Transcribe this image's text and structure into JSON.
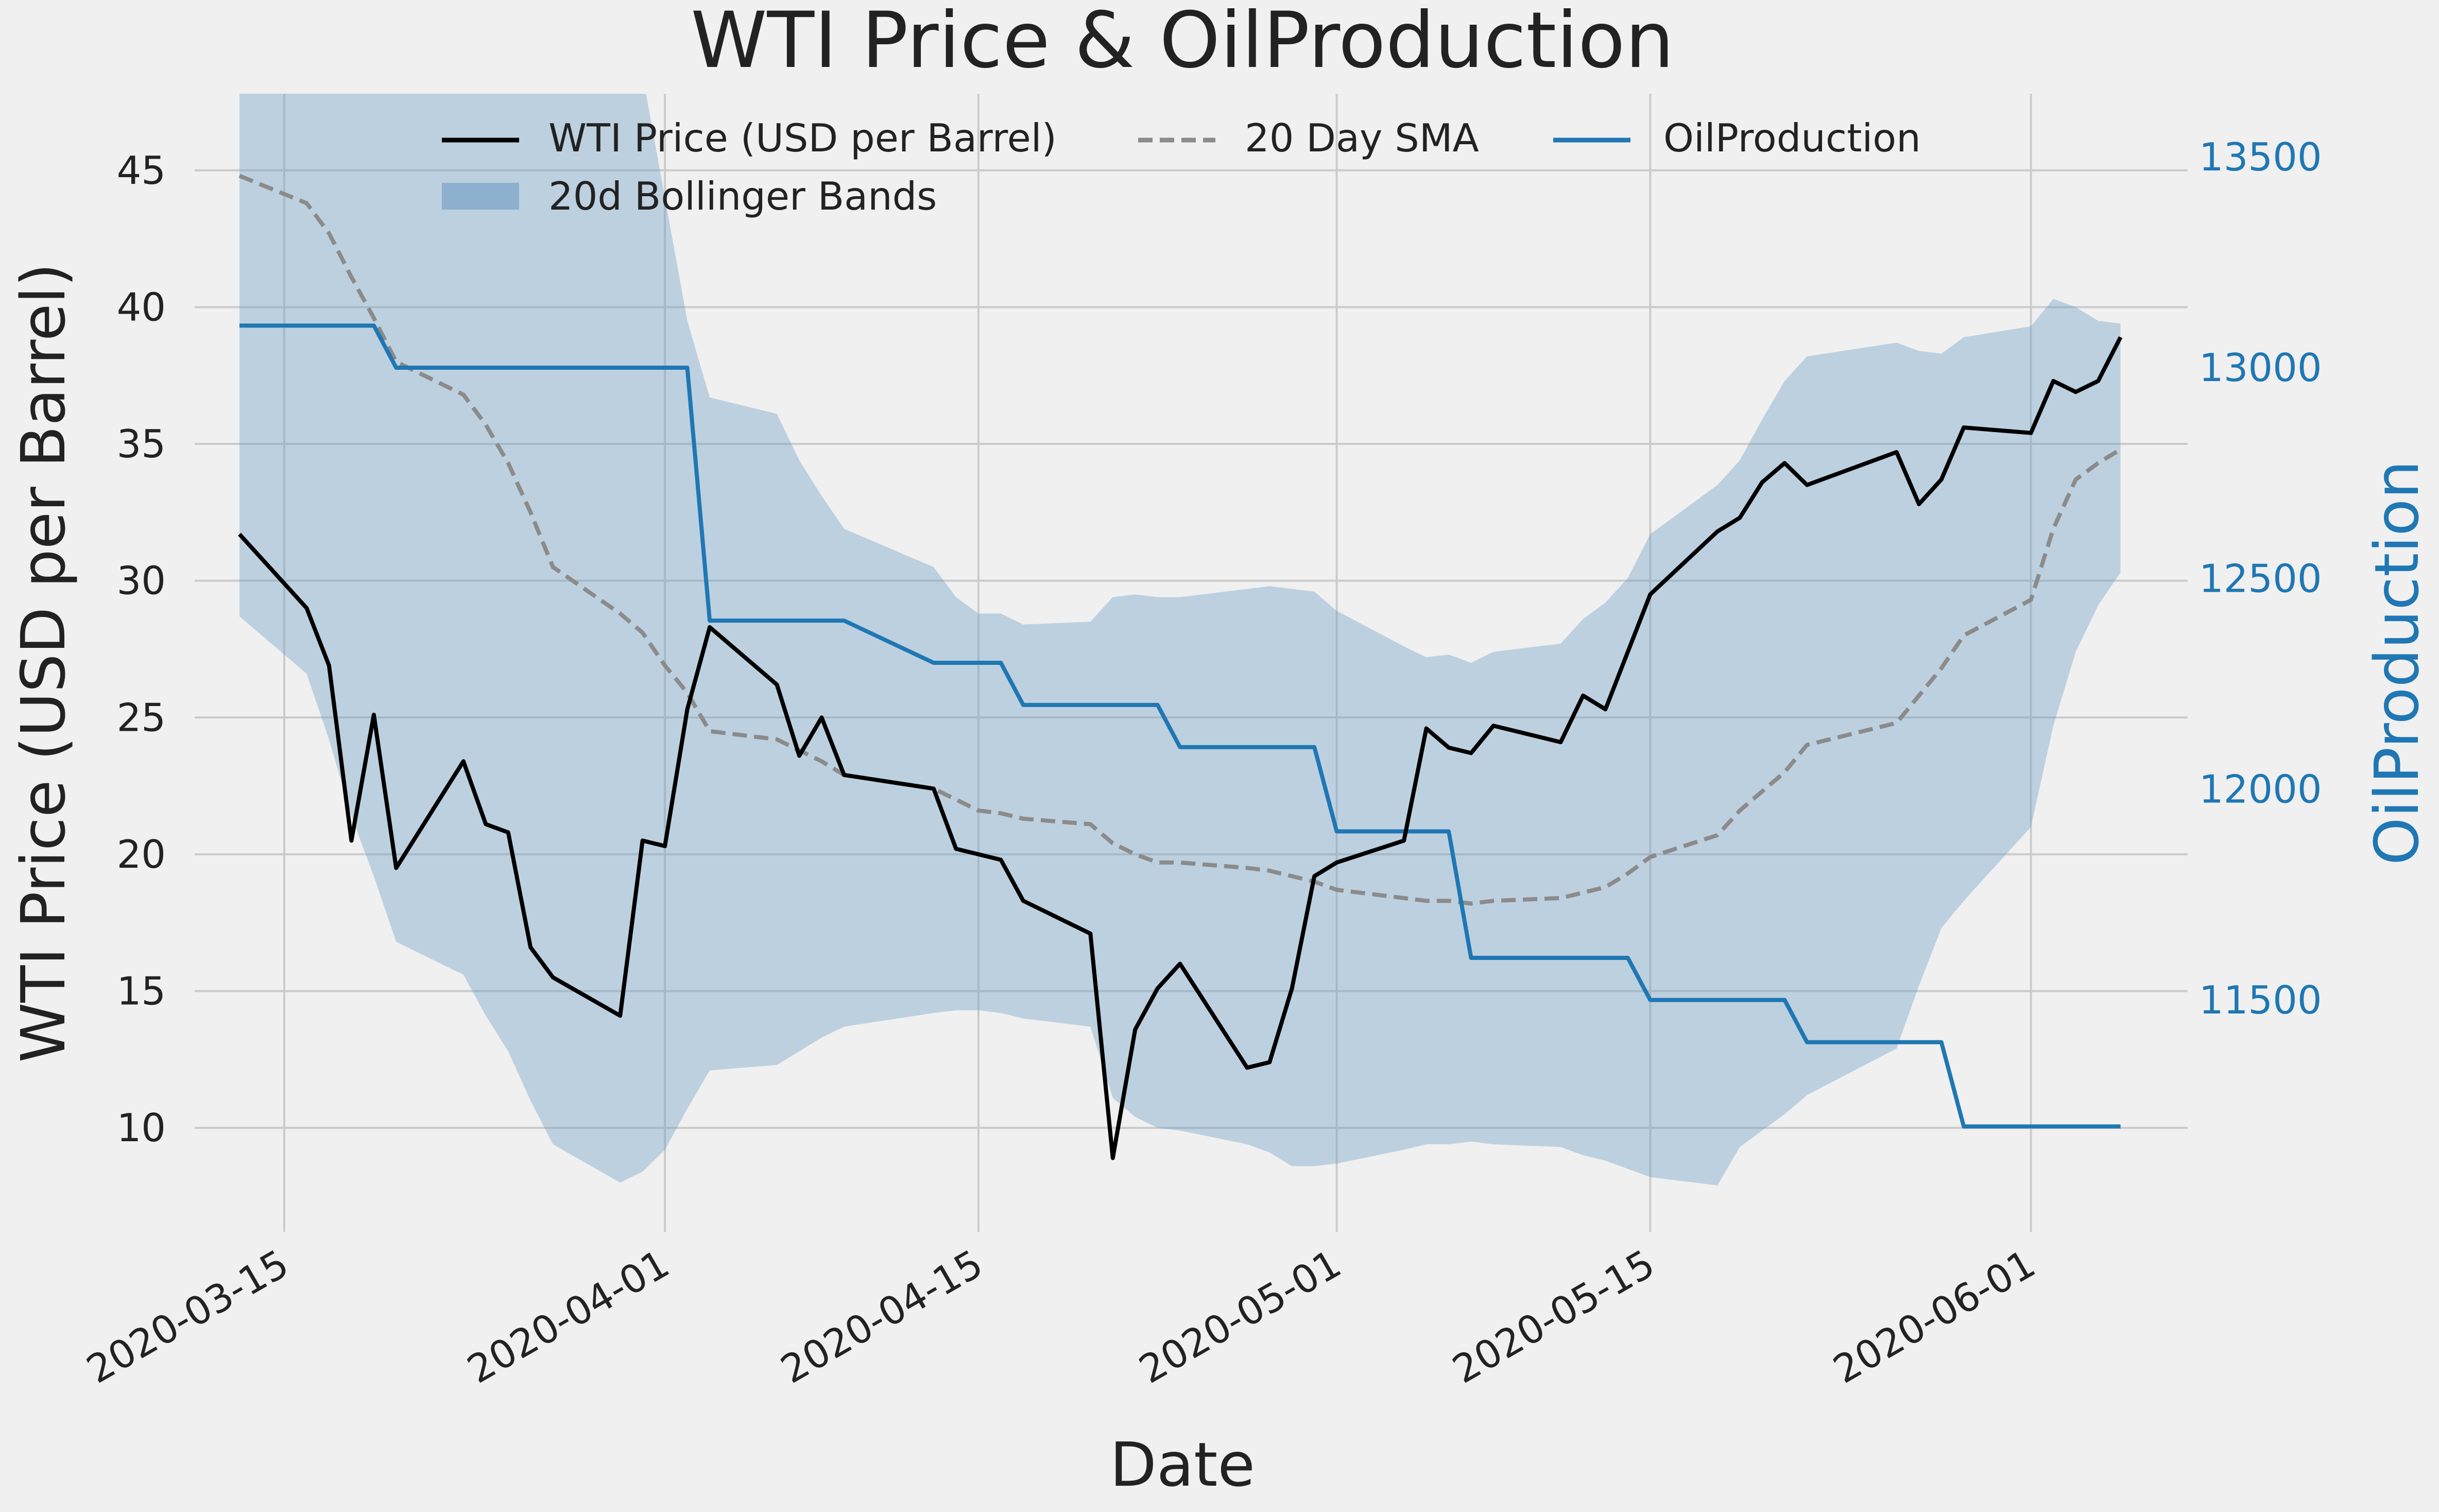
{
  "chart_data": {
    "type": "line",
    "title": "WTI Price & OilProduction",
    "xlabel": "Date",
    "ylabel": "WTI Price (USD per Barrel)",
    "y2label": "OilProduction",
    "ylim": [
      6.2,
      47.8
    ],
    "y2lim": [
      10950,
      13650
    ],
    "xlim": [
      "2020-03-11",
      "2020-06-08"
    ],
    "grid": true,
    "legend_position": "top-center",
    "x_ticks": [
      "2020-03-15",
      "2020-04-01",
      "2020-04-15",
      "2020-05-01",
      "2020-05-15",
      "2020-06-01"
    ],
    "y_ticks": [
      10,
      15,
      20,
      25,
      30,
      35,
      40,
      45
    ],
    "y2_ticks": [
      11500,
      12000,
      12500,
      13000,
      13500
    ],
    "colors": {
      "background": "#f0f0f0",
      "grid": "#cbcbcb",
      "price": "#000000",
      "sma": "#8b8b8b",
      "production": "#1f77b4",
      "band": "#6a9bc3"
    },
    "legend": {
      "price": "WTI Price (USD per Barrel)",
      "sma": "20 Day SMA",
      "production": "OilProduction",
      "bands": "20d Bollinger Bands"
    },
    "price": [
      [
        "2020-03-13",
        31.7
      ],
      [
        "2020-03-16",
        29.0
      ],
      [
        "2020-03-17",
        26.9
      ],
      [
        "2020-03-18",
        20.5
      ],
      [
        "2020-03-19",
        25.1
      ],
      [
        "2020-03-20",
        19.5
      ],
      [
        "2020-03-23",
        23.4
      ],
      [
        "2020-03-24",
        21.1
      ],
      [
        "2020-03-25",
        20.8
      ],
      [
        "2020-03-26",
        16.6
      ],
      [
        "2020-03-27",
        15.5
      ],
      [
        "2020-03-30",
        14.1
      ],
      [
        "2020-03-31",
        20.5
      ],
      [
        "2020-04-01",
        20.3
      ],
      [
        "2020-04-02",
        25.3
      ],
      [
        "2020-04-03",
        28.3
      ],
      [
        "2020-04-06",
        26.2
      ],
      [
        "2020-04-07",
        23.6
      ],
      [
        "2020-04-08",
        25.0
      ],
      [
        "2020-04-09",
        22.9
      ],
      [
        "2020-04-13",
        22.4
      ],
      [
        "2020-04-14",
        20.2
      ],
      [
        "2020-04-15",
        20.0
      ],
      [
        "2020-04-16",
        19.8
      ],
      [
        "2020-04-17",
        18.3
      ],
      [
        "2020-04-20",
        17.1
      ],
      [
        "2020-04-21",
        8.9
      ],
      [
        "2020-04-22",
        13.6
      ],
      [
        "2020-04-23",
        15.1
      ],
      [
        "2020-04-24",
        16.0
      ],
      [
        "2020-04-27",
        12.2
      ],
      [
        "2020-04-28",
        12.4
      ],
      [
        "2020-04-29",
        15.1
      ],
      [
        "2020-04-30",
        19.2
      ],
      [
        "2020-05-01",
        19.7
      ],
      [
        "2020-05-04",
        20.5
      ],
      [
        "2020-05-05",
        24.6
      ],
      [
        "2020-05-06",
        23.9
      ],
      [
        "2020-05-07",
        23.7
      ],
      [
        "2020-05-08",
        24.7
      ],
      [
        "2020-05-11",
        24.1
      ],
      [
        "2020-05-12",
        25.8
      ],
      [
        "2020-05-13",
        25.3
      ],
      [
        "2020-05-14",
        27.4
      ],
      [
        "2020-05-15",
        29.5
      ],
      [
        "2020-05-18",
        31.8
      ],
      [
        "2020-05-19",
        32.3
      ],
      [
        "2020-05-20",
        33.6
      ],
      [
        "2020-05-21",
        34.3
      ],
      [
        "2020-05-22",
        33.5
      ],
      [
        "2020-05-26",
        34.7
      ],
      [
        "2020-05-27",
        32.8
      ],
      [
        "2020-05-28",
        33.7
      ],
      [
        "2020-05-29",
        35.6
      ],
      [
        "2020-06-01",
        35.4
      ],
      [
        "2020-06-02",
        37.3
      ],
      [
        "2020-06-03",
        36.9
      ],
      [
        "2020-06-04",
        37.3
      ],
      [
        "2020-06-05",
        38.9
      ]
    ],
    "sma": [
      [
        "2020-03-13",
        44.8
      ],
      [
        "2020-03-16",
        43.8
      ],
      [
        "2020-03-17",
        42.7
      ],
      [
        "2020-03-18",
        41.1
      ],
      [
        "2020-03-19",
        39.6
      ],
      [
        "2020-03-20",
        38.0
      ],
      [
        "2020-03-23",
        36.8
      ],
      [
        "2020-03-24",
        35.7
      ],
      [
        "2020-03-25",
        34.3
      ],
      [
        "2020-03-26",
        32.5
      ],
      [
        "2020-03-27",
        30.5
      ],
      [
        "2020-03-30",
        28.8
      ],
      [
        "2020-03-31",
        28.1
      ],
      [
        "2020-04-01",
        26.9
      ],
      [
        "2020-04-02",
        25.9
      ],
      [
        "2020-04-03",
        24.5
      ],
      [
        "2020-04-06",
        24.2
      ],
      [
        "2020-04-07",
        23.8
      ],
      [
        "2020-04-08",
        23.4
      ],
      [
        "2020-04-09",
        22.9
      ],
      [
        "2020-04-13",
        22.4
      ],
      [
        "2020-04-14",
        22.0
      ],
      [
        "2020-04-15",
        21.6
      ],
      [
        "2020-04-16",
        21.5
      ],
      [
        "2020-04-17",
        21.3
      ],
      [
        "2020-04-20",
        21.1
      ],
      [
        "2020-04-21",
        20.4
      ],
      [
        "2020-04-22",
        20.0
      ],
      [
        "2020-04-23",
        19.7
      ],
      [
        "2020-04-24",
        19.7
      ],
      [
        "2020-04-27",
        19.5
      ],
      [
        "2020-04-28",
        19.4
      ],
      [
        "2020-04-29",
        19.2
      ],
      [
        "2020-04-30",
        19.0
      ],
      [
        "2020-05-01",
        18.7
      ],
      [
        "2020-05-04",
        18.4
      ],
      [
        "2020-05-05",
        18.3
      ],
      [
        "2020-05-06",
        18.3
      ],
      [
        "2020-05-07",
        18.2
      ],
      [
        "2020-05-08",
        18.3
      ],
      [
        "2020-05-11",
        18.4
      ],
      [
        "2020-05-12",
        18.6
      ],
      [
        "2020-05-13",
        18.8
      ],
      [
        "2020-05-14",
        19.3
      ],
      [
        "2020-05-15",
        19.9
      ],
      [
        "2020-05-18",
        20.7
      ],
      [
        "2020-05-19",
        21.6
      ],
      [
        "2020-05-20",
        22.3
      ],
      [
        "2020-05-21",
        23.0
      ],
      [
        "2020-05-22",
        24.0
      ],
      [
        "2020-05-26",
        24.8
      ],
      [
        "2020-05-27",
        25.8
      ],
      [
        "2020-05-28",
        26.8
      ],
      [
        "2020-05-29",
        28.0
      ],
      [
        "2020-06-01",
        29.3
      ],
      [
        "2020-06-02",
        31.9
      ],
      [
        "2020-06-03",
        33.7
      ],
      [
        "2020-06-04",
        34.3
      ],
      [
        "2020-06-05",
        34.8
      ]
    ],
    "band_upper": [
      [
        "2020-03-13",
        60.0
      ],
      [
        "2020-03-20",
        60.0
      ],
      [
        "2020-03-30",
        60.0
      ],
      [
        "2020-03-31",
        48.5
      ],
      [
        "2020-04-01",
        44.0
      ],
      [
        "2020-04-02",
        39.5
      ],
      [
        "2020-04-03",
        36.7
      ],
      [
        "2020-04-06",
        36.1
      ],
      [
        "2020-04-07",
        34.4
      ],
      [
        "2020-04-08",
        33.1
      ],
      [
        "2020-04-09",
        31.9
      ],
      [
        "2020-04-13",
        30.5
      ],
      [
        "2020-04-14",
        29.4
      ],
      [
        "2020-04-15",
        28.8
      ],
      [
        "2020-04-16",
        28.8
      ],
      [
        "2020-04-17",
        28.4
      ],
      [
        "2020-04-20",
        28.5
      ],
      [
        "2020-04-21",
        29.4
      ],
      [
        "2020-04-22",
        29.5
      ],
      [
        "2020-04-23",
        29.4
      ],
      [
        "2020-04-24",
        29.4
      ],
      [
        "2020-04-27",
        29.7
      ],
      [
        "2020-04-28",
        29.8
      ],
      [
        "2020-04-30",
        29.6
      ],
      [
        "2020-05-01",
        28.9
      ],
      [
        "2020-05-04",
        27.6
      ],
      [
        "2020-05-05",
        27.2
      ],
      [
        "2020-05-06",
        27.3
      ],
      [
        "2020-05-07",
        27.0
      ],
      [
        "2020-05-08",
        27.4
      ],
      [
        "2020-05-11",
        27.7
      ],
      [
        "2020-05-12",
        28.6
      ],
      [
        "2020-05-13",
        29.2
      ],
      [
        "2020-05-14",
        30.1
      ],
      [
        "2020-05-15",
        31.7
      ],
      [
        "2020-05-18",
        33.5
      ],
      [
        "2020-05-19",
        34.4
      ],
      [
        "2020-05-20",
        35.9
      ],
      [
        "2020-05-21",
        37.3
      ],
      [
        "2020-05-22",
        38.2
      ],
      [
        "2020-05-26",
        38.7
      ],
      [
        "2020-05-27",
        38.4
      ],
      [
        "2020-05-28",
        38.3
      ],
      [
        "2020-05-29",
        38.9
      ],
      [
        "2020-06-01",
        39.3
      ],
      [
        "2020-06-02",
        40.3
      ],
      [
        "2020-06-03",
        40.0
      ],
      [
        "2020-06-04",
        39.5
      ],
      [
        "2020-06-05",
        39.4
      ]
    ],
    "band_lower": [
      [
        "2020-03-13",
        28.7
      ],
      [
        "2020-03-16",
        26.6
      ],
      [
        "2020-03-17",
        24.2
      ],
      [
        "2020-03-18",
        21.4
      ],
      [
        "2020-03-19",
        19.2
      ],
      [
        "2020-03-20",
        16.8
      ],
      [
        "2020-03-23",
        15.6
      ],
      [
        "2020-03-24",
        14.1
      ],
      [
        "2020-03-25",
        12.8
      ],
      [
        "2020-03-26",
        11.0
      ],
      [
        "2020-03-27",
        9.4
      ],
      [
        "2020-03-30",
        8.0
      ],
      [
        "2020-03-31",
        8.4
      ],
      [
        "2020-04-01",
        9.2
      ],
      [
        "2020-04-02",
        10.7
      ],
      [
        "2020-04-03",
        12.1
      ],
      [
        "2020-04-06",
        12.3
      ],
      [
        "2020-04-07",
        12.8
      ],
      [
        "2020-04-08",
        13.3
      ],
      [
        "2020-04-09",
        13.7
      ],
      [
        "2020-04-13",
        14.2
      ],
      [
        "2020-04-14",
        14.3
      ],
      [
        "2020-04-15",
        14.3
      ],
      [
        "2020-04-16",
        14.2
      ],
      [
        "2020-04-17",
        14.0
      ],
      [
        "2020-04-20",
        13.7
      ],
      [
        "2020-04-21",
        11.1
      ],
      [
        "2020-04-22",
        10.4
      ],
      [
        "2020-04-23",
        10.0
      ],
      [
        "2020-04-24",
        9.9
      ],
      [
        "2020-04-27",
        9.4
      ],
      [
        "2020-04-28",
        9.1
      ],
      [
        "2020-04-29",
        8.6
      ],
      [
        "2020-04-30",
        8.6
      ],
      [
        "2020-05-01",
        8.7
      ],
      [
        "2020-05-04",
        9.2
      ],
      [
        "2020-05-05",
        9.4
      ],
      [
        "2020-05-06",
        9.4
      ],
      [
        "2020-05-07",
        9.5
      ],
      [
        "2020-05-08",
        9.4
      ],
      [
        "2020-05-11",
        9.3
      ],
      [
        "2020-05-12",
        9.0
      ],
      [
        "2020-05-13",
        8.8
      ],
      [
        "2020-05-14",
        8.5
      ],
      [
        "2020-05-15",
        8.2
      ],
      [
        "2020-05-18",
        7.9
      ],
      [
        "2020-05-19",
        9.3
      ],
      [
        "2020-05-20",
        9.9
      ],
      [
        "2020-05-21",
        10.5
      ],
      [
        "2020-05-22",
        11.2
      ],
      [
        "2020-05-26",
        12.9
      ],
      [
        "2020-05-27",
        15.2
      ],
      [
        "2020-05-28",
        17.3
      ],
      [
        "2020-05-29",
        18.3
      ],
      [
        "2020-06-01",
        21.0
      ],
      [
        "2020-06-02",
        24.7
      ],
      [
        "2020-06-03",
        27.4
      ],
      [
        "2020-06-04",
        29.1
      ],
      [
        "2020-06-05",
        30.3
      ]
    ],
    "production": [
      [
        "2020-03-13",
        13100
      ],
      [
        "2020-03-19",
        13100
      ],
      [
        "2020-03-20",
        13000
      ],
      [
        "2020-04-02",
        13000
      ],
      [
        "2020-04-03",
        12400
      ],
      [
        "2020-04-09",
        12400
      ],
      [
        "2020-04-13",
        12300
      ],
      [
        "2020-04-16",
        12300
      ],
      [
        "2020-04-17",
        12200
      ],
      [
        "2020-04-23",
        12200
      ],
      [
        "2020-04-24",
        12100
      ],
      [
        "2020-04-30",
        12100
      ],
      [
        "2020-05-01",
        11900
      ],
      [
        "2020-05-06",
        11900
      ],
      [
        "2020-05-07",
        11600
      ],
      [
        "2020-05-14",
        11600
      ],
      [
        "2020-05-15",
        11500
      ],
      [
        "2020-05-21",
        11500
      ],
      [
        "2020-05-22",
        11400
      ],
      [
        "2020-05-28",
        11400
      ],
      [
        "2020-05-29",
        11200
      ],
      [
        "2020-06-05",
        11200
      ]
    ]
  }
}
